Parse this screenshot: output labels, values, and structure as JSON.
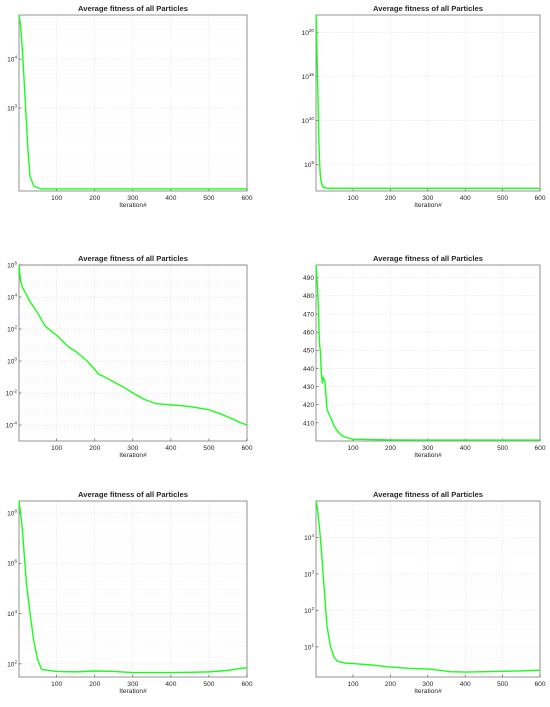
{
  "chart_data": [
    {
      "type": "line",
      "title": "Average fitness of all Particles",
      "xlabel": "Iteration#",
      "ylabel": "",
      "yscale": "log",
      "grid": true,
      "xlim": [
        1,
        600
      ],
      "ylim": [
        20,
        80000
      ],
      "xticks": [
        100,
        200,
        300,
        400,
        500,
        600
      ],
      "yticks": [
        {
          "base": "10",
          "exp": "3",
          "value": 1000
        },
        {
          "base": "10",
          "exp": "4",
          "value": 10000
        }
      ],
      "series": [
        {
          "x": [
            1,
            5,
            10,
            15,
            20,
            25,
            30,
            40,
            60,
            100,
            200,
            300,
            400,
            500,
            600
          ],
          "values": [
            80000,
            50000,
            15000,
            3000,
            600,
            120,
            40,
            25,
            22,
            22,
            22,
            22,
            22,
            22,
            22
          ]
        }
      ]
    },
    {
      "type": "line",
      "title": "Average fitness of all Particles",
      "xlabel": "Iteration#",
      "ylabel": "",
      "yscale": "log",
      "grid": true,
      "xlim": [
        1,
        600
      ],
      "ylim": [
        100,
        1e+22
      ],
      "xticks": [
        100,
        200,
        300,
        400,
        500,
        600
      ],
      "yticks": [
        {
          "base": "10",
          "exp": "5",
          "value": 100000.0
        },
        {
          "base": "10",
          "exp": "10",
          "value": 10000000000.0
        },
        {
          "base": "10",
          "exp": "15",
          "value": 1000000000000000.0
        },
        {
          "base": "10",
          "exp": "20",
          "value": 1e+20
        }
      ],
      "series": [
        {
          "x": [
            1,
            2,
            4,
            6,
            8,
            10,
            12,
            15,
            20,
            30,
            50,
            100,
            200,
            300,
            400,
            500,
            600
          ],
          "values": [
            1e+22,
            1e+21,
            1e+17,
            10000000000000.0,
            1000000000.0,
            1000000.0,
            10000.0,
            1000,
            300,
            200,
            200,
            200,
            200,
            200,
            200,
            200,
            200
          ]
        }
      ]
    },
    {
      "type": "line",
      "title": "Average fitness of all Particles",
      "xlabel": "Iteration#",
      "ylabel": "",
      "yscale": "log",
      "grid": true,
      "xlim": [
        1,
        600
      ],
      "ylim": [
        1e-05,
        1000000
      ],
      "xticks": [
        100,
        200,
        300,
        400,
        500,
        600
      ],
      "yticks": [
        {
          "base": "10",
          "exp": "-4",
          "value": 0.0001
        },
        {
          "base": "10",
          "exp": "-2",
          "value": 0.01
        },
        {
          "base": "10",
          "exp": "0",
          "value": 1
        },
        {
          "base": "10",
          "exp": "2",
          "value": 100
        },
        {
          "base": "10",
          "exp": "4",
          "value": 10000
        },
        {
          "base": "10",
          "exp": "6",
          "value": 1000000
        }
      ],
      "series": [
        {
          "x": [
            1,
            5,
            10,
            20,
            30,
            50,
            70,
            100,
            130,
            150,
            180,
            200,
            210,
            220,
            250,
            280,
            300,
            330,
            360,
            400,
            430,
            460,
            500,
            530,
            560,
            580,
            600
          ],
          "values": [
            1000000,
            100000,
            40000,
            15000,
            5000,
            1000,
            150,
            40,
            8,
            4,
            1,
            0.3,
            0.15,
            0.12,
            0.05,
            0.02,
            0.01,
            0.004,
            0.0022,
            0.0018,
            0.0016,
            0.0013,
            0.0009,
            0.0005,
            0.00025,
            0.00015,
            0.0001
          ]
        }
      ]
    },
    {
      "type": "line",
      "title": "Average fitness of all Particles",
      "xlabel": "Iteration#",
      "ylabel": "",
      "yscale": "linear",
      "grid": true,
      "xlim": [
        1,
        600
      ],
      "ylim": [
        400,
        497
      ],
      "xticks": [
        100,
        200,
        300,
        400,
        500,
        600
      ],
      "yticks": [
        {
          "base": "410",
          "exp": "",
          "value": 410
        },
        {
          "base": "420",
          "exp": "",
          "value": 420
        },
        {
          "base": "430",
          "exp": "",
          "value": 430
        },
        {
          "base": "440",
          "exp": "",
          "value": 440
        },
        {
          "base": "450",
          "exp": "",
          "value": 450
        },
        {
          "base": "460",
          "exp": "",
          "value": 460
        },
        {
          "base": "470",
          "exp": "",
          "value": 470
        },
        {
          "base": "480",
          "exp": "",
          "value": 480
        },
        {
          "base": "490",
          "exp": "",
          "value": 490
        }
      ],
      "series": [
        {
          "x": [
            1,
            5,
            8,
            10,
            13,
            15,
            18,
            20,
            25,
            30,
            35,
            40,
            50,
            60,
            70,
            80,
            100,
            150,
            200,
            300,
            400,
            500,
            600
          ],
          "values": [
            497,
            485,
            470,
            455,
            448,
            438,
            432,
            435,
            433,
            418,
            415,
            413,
            408,
            405,
            403,
            402,
            401,
            400.8,
            400.6,
            400.5,
            400.5,
            400.5,
            400.5
          ]
        }
      ]
    },
    {
      "type": "line",
      "title": "Average fitness of all Particles",
      "xlabel": "Iteration#",
      "ylabel": "",
      "yscale": "log",
      "grid": true,
      "xlim": [
        1,
        600
      ],
      "ylim": [
        30,
        300000000
      ],
      "xticks": [
        100,
        200,
        300,
        400,
        500,
        600
      ],
      "yticks": [
        {
          "base": "10",
          "exp": "2",
          "value": 100
        },
        {
          "base": "10",
          "exp": "4",
          "value": 10000
        },
        {
          "base": "10",
          "exp": "6",
          "value": 1000000
        },
        {
          "base": "10",
          "exp": "8",
          "value": 100000000
        }
      ],
      "series": [
        {
          "x": [
            1,
            5,
            10,
            15,
            20,
            30,
            40,
            50,
            60,
            100,
            150,
            200,
            250,
            300,
            350,
            400,
            450,
            500,
            550,
            580,
            600
          ],
          "values": [
            300000000,
            100000000,
            20000000,
            2000000,
            200000,
            10000,
            800,
            150,
            60,
            50,
            48,
            52,
            50,
            45,
            45,
            45,
            46,
            48,
            55,
            65,
            70
          ]
        }
      ]
    },
    {
      "type": "line",
      "title": "Average fitness of all Particles",
      "xlabel": "Iteration#",
      "ylabel": "",
      "yscale": "log",
      "grid": true,
      "xlim": [
        1,
        600
      ],
      "ylim": [
        1.5,
        100000
      ],
      "xticks": [
        100,
        200,
        300,
        400,
        500,
        600
      ],
      "yticks": [
        {
          "base": "10",
          "exp": "1",
          "value": 10
        },
        {
          "base": "10",
          "exp": "2",
          "value": 100
        },
        {
          "base": "10",
          "exp": "3",
          "value": 1000
        },
        {
          "base": "10",
          "exp": "4",
          "value": 10000
        }
      ],
      "series": [
        {
          "x": [
            1,
            5,
            10,
            15,
            20,
            25,
            30,
            40,
            50,
            60,
            80,
            100,
            150,
            200,
            250,
            300,
            330,
            360,
            400,
            450,
            500,
            550,
            600
          ],
          "values": [
            100000,
            60000,
            20000,
            5000,
            1000,
            200,
            40,
            10,
            5,
            4,
            3.6,
            3.5,
            3.2,
            2.8,
            2.6,
            2.5,
            2.3,
            2.1,
            2.05,
            2.1,
            2.15,
            2.2,
            2.3
          ]
        }
      ]
    }
  ]
}
